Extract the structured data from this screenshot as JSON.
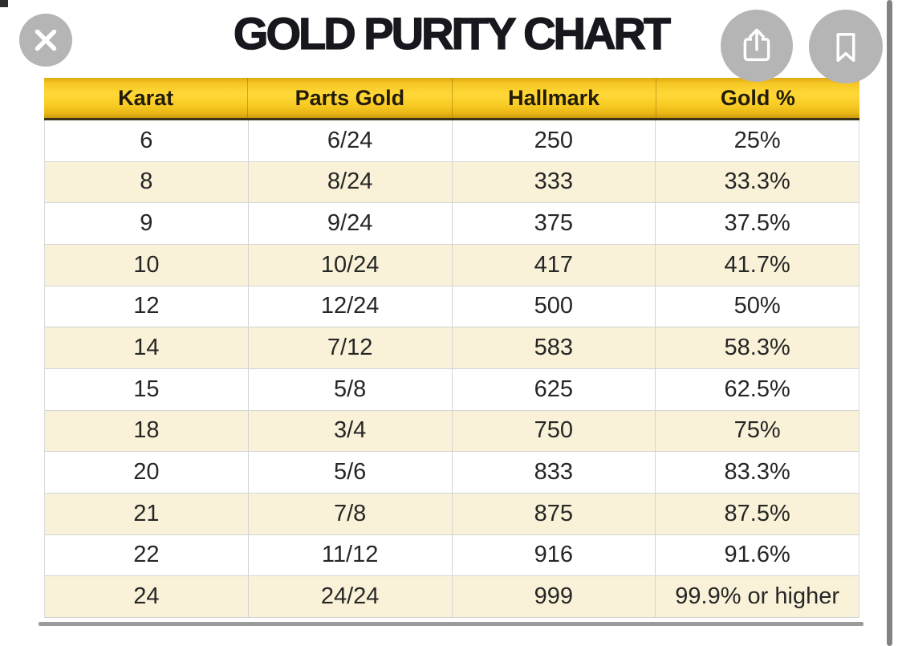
{
  "title": "GOLD PURITY CHART",
  "table": {
    "headers": [
      "Karat",
      "Parts Gold",
      "Hallmark",
      "Gold %"
    ],
    "rows": [
      [
        "6",
        "6/24",
        "250",
        "25%"
      ],
      [
        "8",
        "8/24",
        "333",
        "33.3%"
      ],
      [
        "9",
        "9/24",
        "375",
        "37.5%"
      ],
      [
        "10",
        "10/24",
        "417",
        "41.7%"
      ],
      [
        "12",
        "12/24",
        "500",
        "50%"
      ],
      [
        "14",
        "7/12",
        "583",
        "58.3%"
      ],
      [
        "15",
        "5/8",
        "625",
        "62.5%"
      ],
      [
        "18",
        "3/4",
        "750",
        "75%"
      ],
      [
        "20",
        "5/6",
        "833",
        "83.3%"
      ],
      [
        "21",
        "7/8",
        "875",
        "87.5%"
      ],
      [
        "22",
        "11/12",
        "916",
        "91.6%"
      ],
      [
        "24",
        "24/24",
        "999",
        "99.9% or higher"
      ]
    ]
  },
  "icons": {
    "close": "close-icon (x glyph, white stroke)",
    "share": "share-icon (box with up arrow, white stroke)",
    "bookmark": "bookmark-icon (ribbon outline, white stroke)"
  },
  "colors": {
    "header_gold": "#F2BF1D",
    "header_gold_bright": "#FFD838",
    "header_border_dark": "#3A3116",
    "row_alt_cream": "#F9F2D8",
    "row_divider": "#D4D4D4",
    "button_gray": "#B5B5B5",
    "scrollbar_gray": "#828282",
    "text_dark": "#1D1D1D",
    "bottom_edge_gray": "#9B9B9B"
  },
  "chart_data": {
    "type": "table",
    "title": "GOLD PURITY CHART",
    "columns": [
      "Karat",
      "Parts Gold",
      "Hallmark",
      "Gold %"
    ],
    "rows": [
      [
        "6",
        "6/24",
        "250",
        "25%"
      ],
      [
        "8",
        "8/24",
        "333",
        "33.3%"
      ],
      [
        "9",
        "9/24",
        "375",
        "37.5%"
      ],
      [
        "10",
        "10/24",
        "417",
        "41.7%"
      ],
      [
        "12",
        "12/24",
        "500",
        "50%"
      ],
      [
        "14",
        "7/12",
        "583",
        "58.3%"
      ],
      [
        "15",
        "5/8",
        "625",
        "62.5%"
      ],
      [
        "18",
        "3/4",
        "750",
        "75%"
      ],
      [
        "20",
        "5/6",
        "833",
        "83.3%"
      ],
      [
        "21",
        "7/8",
        "875",
        "87.5%"
      ],
      [
        "22",
        "11/12",
        "916",
        "91.6%"
      ],
      [
        "24",
        "24/24",
        "999",
        "99.9% or higher"
      ]
    ]
  }
}
